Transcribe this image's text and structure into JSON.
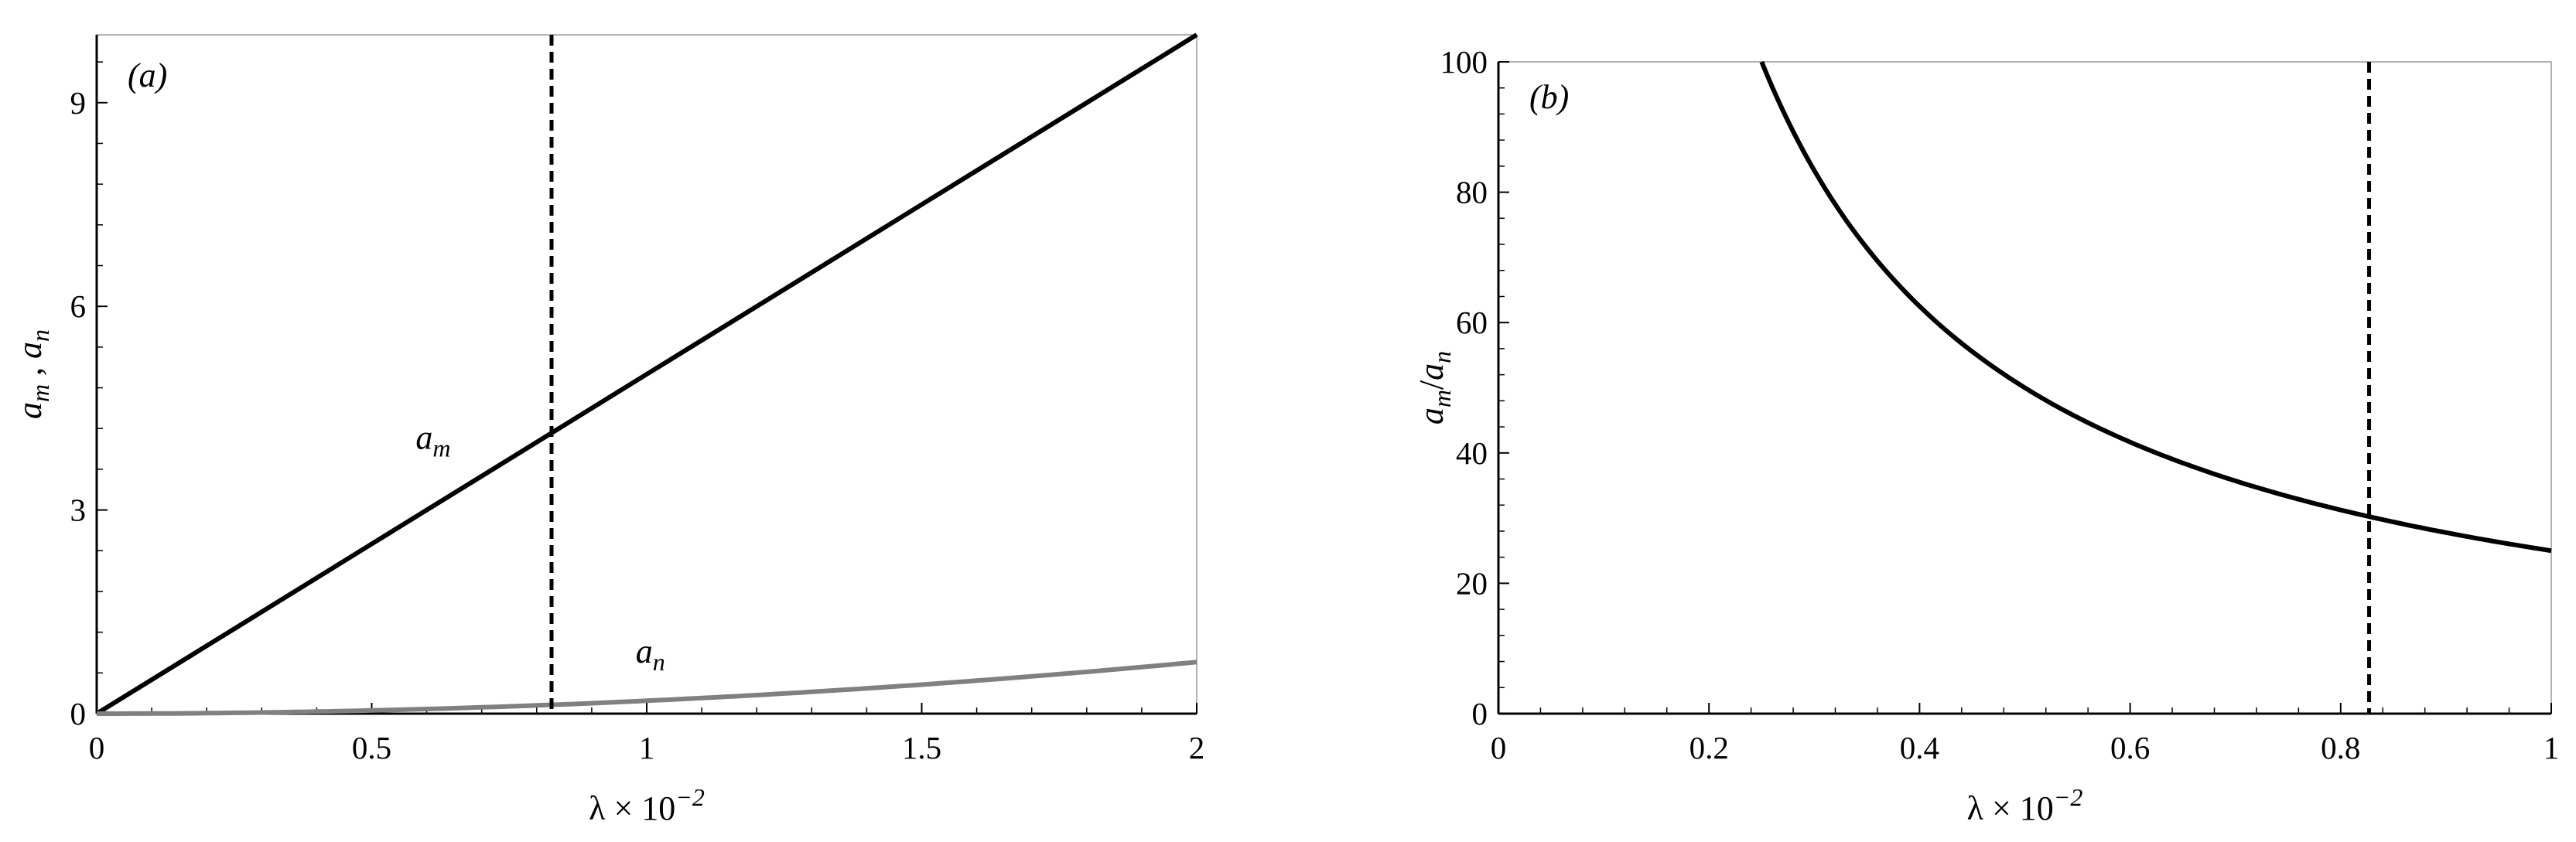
{
  "chart_data": [
    {
      "type": "line",
      "panel_label": "(a)",
      "xlabel": "λ × 10",
      "xlabel_exp": "−2",
      "ylabel": [
        "a",
        "m",
        " , ",
        "a",
        "n"
      ],
      "xlim": [
        0,
        2
      ],
      "ylim": [
        0,
        10
      ],
      "xticks": [
        0,
        0.5,
        1,
        1.5,
        2
      ],
      "xtick_labels": [
        "0",
        "0.5",
        "1",
        "1.5",
        "2"
      ],
      "yticks": [
        0,
        3,
        6,
        9
      ],
      "ytick_labels": [
        "0",
        "3",
        "6",
        "9"
      ],
      "grid": false,
      "vline": {
        "x": 0.827,
        "style": "dashed",
        "color": "#000000"
      },
      "series": [
        {
          "label": [
            "a",
            "m"
          ],
          "label_at": {
            "x": 0.58,
            "y": 3.9
          },
          "color": "#000000",
          "x": [
            0,
            0.25,
            0.5,
            0.75,
            1.0,
            1.25,
            1.5,
            1.75,
            2.0
          ],
          "y": [
            0,
            1.25,
            2.5,
            3.75,
            5.0,
            6.25,
            7.5,
            8.75,
            10.0
          ]
        },
        {
          "label": [
            "a",
            "n"
          ],
          "label_at": {
            "x": 0.98,
            "y": 0.75
          },
          "color": "#808080",
          "x": [
            0,
            0.25,
            0.5,
            0.75,
            1.0,
            1.25,
            1.5,
            1.75,
            2.0
          ],
          "y": [
            0,
            0.012,
            0.047,
            0.105,
            0.19,
            0.295,
            0.425,
            0.58,
            0.76
          ]
        }
      ]
    },
    {
      "type": "line",
      "panel_label": "(b)",
      "xlabel": "λ × 10",
      "xlabel_exp": "−2",
      "ylabel": [
        "a",
        "m",
        "/",
        "a",
        "n"
      ],
      "xlim": [
        0,
        1
      ],
      "ylim": [
        0,
        100
      ],
      "xticks": [
        0,
        0.2,
        0.4,
        0.6,
        0.8,
        1
      ],
      "xtick_labels": [
        "0",
        "0.2",
        "0.4",
        "0.6",
        "0.8",
        "1"
      ],
      "yticks": [
        0,
        20,
        40,
        60,
        80,
        100
      ],
      "ytick_labels": [
        "0",
        "20",
        "40",
        "60",
        "80",
        "100"
      ],
      "grid": false,
      "vline": {
        "x": 0.827,
        "style": "dashed",
        "color": "#000000"
      },
      "series": [
        {
          "color": "#000000",
          "x": [
            0.25,
            0.3,
            0.35,
            0.4,
            0.45,
            0.5,
            0.6,
            0.7,
            0.8,
            0.9,
            1.0
          ],
          "y": [
            100,
            83.3,
            71.4,
            62.5,
            55.6,
            50.0,
            41.7,
            35.7,
            31.25,
            27.8,
            25.0
          ]
        }
      ]
    }
  ]
}
